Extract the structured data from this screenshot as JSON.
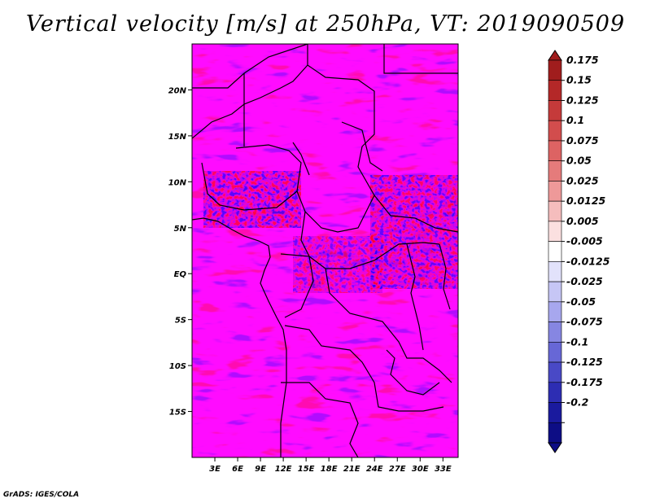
{
  "title": "Vertical velocity [m/s] at 250hPa, VT: 2019090509",
  "footer": "GrADS: IGES/COLA",
  "chart_data": {
    "type": "heatmap",
    "title": "Vertical velocity [m/s] at 250hPa, VT: 2019090509",
    "xlabel": "",
    "ylabel": "",
    "xlim": [
      0,
      35
    ],
    "ylim": [
      -20,
      25
    ],
    "x_ticks": [
      {
        "value": 3,
        "label": "3E"
      },
      {
        "value": 6,
        "label": "6E"
      },
      {
        "value": 9,
        "label": "9E"
      },
      {
        "value": 12,
        "label": "12E"
      },
      {
        "value": 15,
        "label": "15E"
      },
      {
        "value": 18,
        "label": "18E"
      },
      {
        "value": 21,
        "label": "21E"
      },
      {
        "value": 24,
        "label": "24E"
      },
      {
        "value": 27,
        "label": "27E"
      },
      {
        "value": 30,
        "label": "30E"
      },
      {
        "value": 33,
        "label": "33E"
      }
    ],
    "y_ticks": [
      {
        "value": 20,
        "label": "20N"
      },
      {
        "value": 15,
        "label": "15N"
      },
      {
        "value": 10,
        "label": "10N"
      },
      {
        "value": 5,
        "label": "5N"
      },
      {
        "value": 0,
        "label": "EQ"
      },
      {
        "value": -5,
        "label": "5S"
      },
      {
        "value": -10,
        "label": "10S"
      },
      {
        "value": -15,
        "label": "15S"
      }
    ],
    "colorbar": {
      "labels": [
        "0.175",
        "0.15",
        "0.125",
        "0.1",
        "0.075",
        "0.05",
        "0.025",
        "0.0125",
        "0.005",
        "-0.005",
        "-0.0125",
        "-0.025",
        "-0.05",
        "-0.075",
        "-0.1",
        "-0.125",
        "-0.175",
        "-0.2"
      ],
      "colors": [
        "#a01d1d",
        "#b42828",
        "#c53a3a",
        "#d24d4d",
        "#dd6363",
        "#e57b7b",
        "#ee9999",
        "#f5bdbd",
        "#fbe0e0",
        "#ffffff",
        "#e2e2fb",
        "#c6c6f5",
        "#a7a7ee",
        "#8686e2",
        "#6767d6",
        "#4949c6",
        "#2d2db3",
        "#1a1a9e",
        "#0d0d85"
      ],
      "extend": "both"
    },
    "color_top": "#a01d1d",
    "color_bottom": "#0d0d85"
  }
}
